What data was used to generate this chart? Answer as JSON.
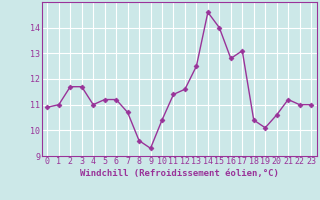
{
  "x": [
    0,
    1,
    2,
    3,
    4,
    5,
    6,
    7,
    8,
    9,
    10,
    11,
    12,
    13,
    14,
    15,
    16,
    17,
    18,
    19,
    20,
    21,
    22,
    23
  ],
  "y": [
    10.9,
    11.0,
    11.7,
    11.7,
    11.0,
    11.2,
    11.2,
    10.7,
    9.6,
    9.3,
    10.4,
    11.4,
    11.6,
    12.5,
    14.6,
    14.0,
    12.8,
    13.1,
    10.4,
    10.1,
    10.6,
    11.2,
    11.0,
    11.0
  ],
  "line_color": "#993399",
  "marker": "D",
  "marker_size": 2.5,
  "bg_color": "#cce8e8",
  "grid_color": "#ffffff",
  "xlabel": "Windchill (Refroidissement éolien,°C)",
  "ylim": [
    9,
    15
  ],
  "xlim_min": -0.5,
  "xlim_max": 23.5,
  "yticks": [
    9,
    10,
    11,
    12,
    13,
    14
  ],
  "xticks": [
    0,
    1,
    2,
    3,
    4,
    5,
    6,
    7,
    8,
    9,
    10,
    11,
    12,
    13,
    14,
    15,
    16,
    17,
    18,
    19,
    20,
    21,
    22,
    23
  ],
  "tick_color": "#993399",
  "label_fontsize": 6.5,
  "tick_fontsize": 6,
  "line_width": 1.0
}
